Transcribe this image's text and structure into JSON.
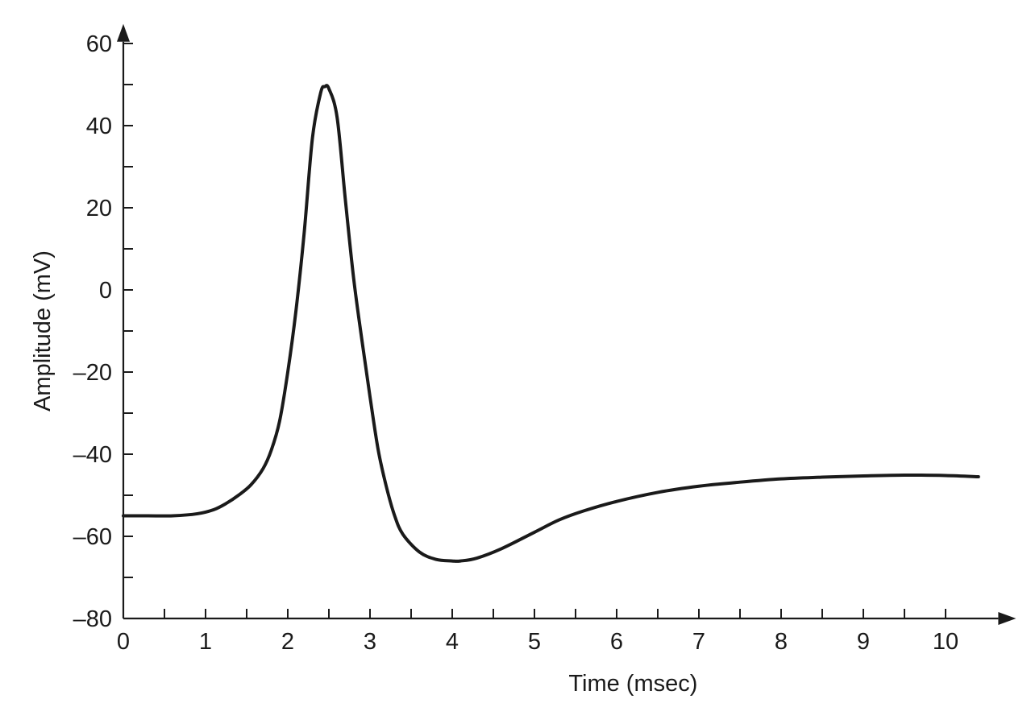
{
  "chart_data": {
    "type": "line",
    "title": "",
    "xlabel": "Time (msec)",
    "ylabel": "Amplitude (mV)",
    "xlim": [
      0,
      10.7
    ],
    "ylim": [
      -80,
      62
    ],
    "x_ticks": [
      0,
      1,
      2,
      3,
      4,
      5,
      6,
      7,
      8,
      9,
      10
    ],
    "x_minor_ticks": [
      0.5,
      1.5,
      2.5,
      3.5,
      4.5,
      5.5,
      6.5,
      7.5,
      8.5,
      9.5
    ],
    "y_ticks": [
      -80,
      -60,
      -40,
      -20,
      0,
      20,
      40,
      60
    ],
    "y_tick_labels": [
      "–80",
      "–60",
      "–40",
      "–20",
      "0",
      "20",
      "40",
      "60"
    ],
    "y_minor_ticks": [
      -70,
      -50,
      -30,
      -10,
      10,
      30,
      50
    ],
    "grid": false,
    "legend": "none",
    "colors": {
      "axis": "#1a1a1a",
      "line": "#1a1a1a",
      "background": "#ffffff"
    },
    "series": [
      {
        "x": [
          0,
          0.3,
          0.6,
          0.9,
          1.1,
          1.25,
          1.4,
          1.55,
          1.7,
          1.8,
          1.9,
          2.0,
          2.1,
          2.2,
          2.3,
          2.4,
          2.45,
          2.5,
          2.6,
          2.7,
          2.8,
          2.9,
          3.0,
          3.1,
          3.2,
          3.3,
          3.4,
          3.6,
          3.8,
          4.0,
          4.1,
          4.3,
          4.6,
          5.0,
          5.3,
          5.6,
          6.0,
          6.5,
          7.0,
          7.5,
          8.0,
          8.5,
          9.0,
          9.5,
          10.0,
          10.4
        ],
        "y": [
          -55,
          -55,
          -55,
          -54.5,
          -53.5,
          -52,
          -50,
          -47.5,
          -43.5,
          -39,
          -32,
          -20,
          -5,
          14,
          37,
          48,
          49.5,
          49,
          42,
          22,
          3,
          -12,
          -26,
          -39,
          -48,
          -55,
          -59.5,
          -63.8,
          -65.6,
          -66,
          -66,
          -65.3,
          -63,
          -59,
          -56,
          -53.8,
          -51.5,
          -49.3,
          -47.8,
          -46.8,
          -46,
          -45.6,
          -45.3,
          -45.1,
          -45.2,
          -45.5
        ]
      }
    ]
  }
}
